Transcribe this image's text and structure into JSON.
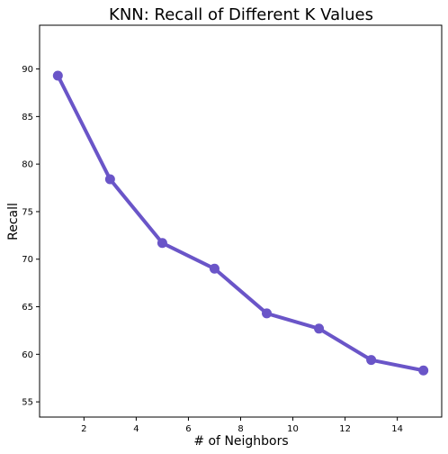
{
  "chart_data": {
    "type": "line",
    "title": "KNN: Recall of Different K Values",
    "xlabel": "# of Neighbors",
    "ylabel": "Recall",
    "x": [
      1,
      3,
      5,
      7,
      9,
      11,
      13,
      15
    ],
    "series": [
      {
        "values": [
          89.3,
          78.4,
          71.7,
          69.0,
          64.3,
          62.7,
          59.4,
          58.3
        ]
      }
    ],
    "xlim": [
      0.3,
      15.7
    ],
    "ylim": [
      53.4,
      94.6
    ],
    "xticks": [
      2,
      4,
      6,
      8,
      10,
      12,
      14
    ],
    "yticks": [
      55,
      60,
      65,
      70,
      75,
      80,
      85,
      90
    ],
    "grid": false,
    "legend": false,
    "line_color": "#6a55c8",
    "marker_color": "#6a55c8"
  }
}
